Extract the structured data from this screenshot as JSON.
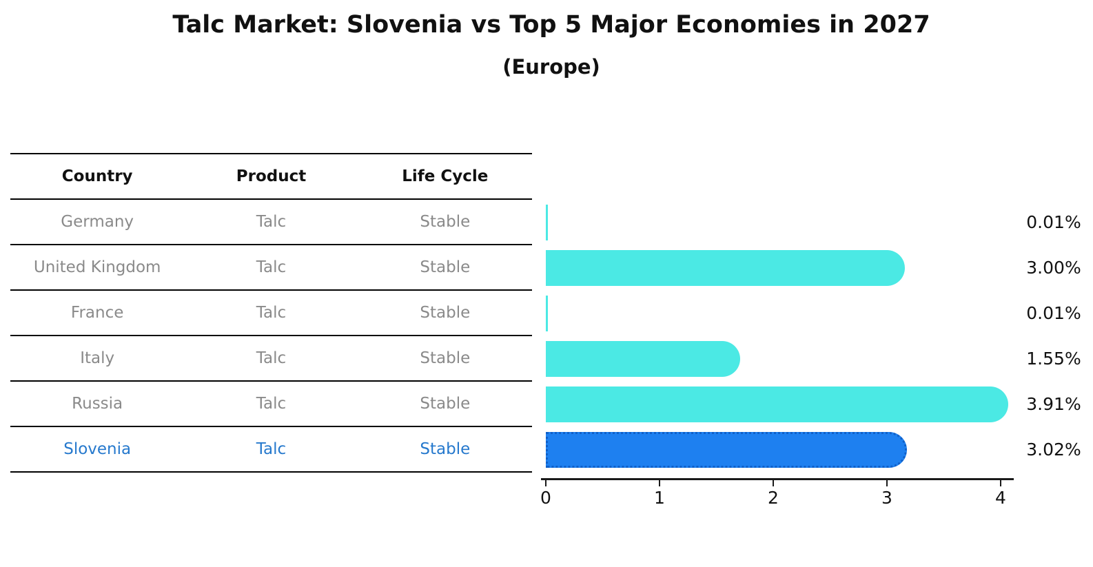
{
  "title": "Talc Market: Slovenia vs Top 5 Major Economies in 2027",
  "subtitle": "(Europe)",
  "table": {
    "headers": [
      "Country",
      "Product",
      "Life Cycle"
    ],
    "rows": [
      {
        "country": "Germany",
        "product": "Talc",
        "life_cycle": "Stable",
        "highlight": false
      },
      {
        "country": "United Kingdom",
        "product": "Talc",
        "life_cycle": "Stable",
        "highlight": false
      },
      {
        "country": "France",
        "product": "Talc",
        "life_cycle": "Stable",
        "highlight": false
      },
      {
        "country": "Italy",
        "product": "Talc",
        "life_cycle": "Stable",
        "highlight": false
      },
      {
        "country": "Russia",
        "product": "Talc",
        "life_cycle": "Stable",
        "highlight": false
      },
      {
        "country": "Slovenia",
        "product": "Talc",
        "life_cycle": "Stable",
        "highlight": true
      }
    ]
  },
  "chart_data": {
    "type": "bar",
    "orientation": "horizontal",
    "categories": [
      "Germany",
      "United Kingdom",
      "France",
      "Italy",
      "Russia",
      "Slovenia"
    ],
    "values": [
      0.01,
      3.0,
      0.01,
      1.55,
      3.91,
      3.02
    ],
    "value_labels": [
      "0.01%",
      "3.00%",
      "0.01%",
      "1.55%",
      "3.91%",
      "3.02%"
    ],
    "x_ticks": [
      0,
      1,
      2,
      3,
      4
    ],
    "xlim": [
      0,
      4.1
    ],
    "grid": false,
    "legend": "none",
    "bar_color": "#4be9e4",
    "highlight_index": 5,
    "highlight_color": "#1e80f0",
    "highlight_border_color": "#1060c8",
    "muted_text_color": "#8a8a8a",
    "highlight_text_color": "#2679cd"
  }
}
